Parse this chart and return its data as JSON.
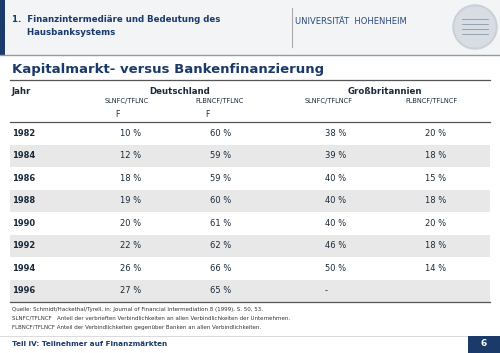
{
  "title": "Kapitalmarkt- versus Bankenfinanzierung",
  "header_line1": "1.  Finanzintermediäre und Bedeutung des",
  "header_line2": "     Hausbanksystems",
  "uni_text": "UNIVERSITÄT  HOHENHEIM",
  "sub_headers": [
    "SLNFC/TFLNC",
    "FLBNCF/TFLNC",
    "SLNFC/TFLNCF",
    "FLBNCF/TFLNCF"
  ],
  "years": [
    "1982",
    "1984",
    "1986",
    "1988",
    "1990",
    "1992",
    "1994",
    "1996"
  ],
  "data": [
    [
      "10 %",
      "60 %",
      "38 %",
      "20 %"
    ],
    [
      "12 %",
      "59 %",
      "39 %",
      "18 %"
    ],
    [
      "18 %",
      "59 %",
      "40 %",
      "15 %"
    ],
    [
      "19 %",
      "60 %",
      "40 %",
      "18 %"
    ],
    [
      "20 %",
      "61 %",
      "40 %",
      "20 %"
    ],
    [
      "22 %",
      "62 %",
      "46 %",
      "18 %"
    ],
    [
      "26 %",
      "66 %",
      "50 %",
      "14 %"
    ],
    [
      "27 %",
      "65 %",
      "-",
      ""
    ]
  ],
  "footer_lines": [
    "Quelle: Schmidt/Hackethal/Tyrell, in: Journal of Financial Intermediation 8 (1999), S. 50, 53.",
    "SLNFC/TFLNCF   Anteil der verbrieften Verbindlichkeiten an allen Verbindlichkeiten der Unternehmen.",
    "FLBNCF/TFLNCF Anteil der Verbindlichkeiten gegenüber Banken an allen Verbindlichkeiten."
  ],
  "bottom_left": "Teil IV: Teilnehmer auf Finanzmärkten",
  "bottom_right": "6",
  "stripe_color": "#e8e8e8",
  "white_color": "#ffffff",
  "header_bar_color": "#1a3a6a",
  "title_color": "#1a3a6a",
  "table_text_color": "#1a2a3a",
  "header_blue": "#1a3a6a",
  "line_color": "#555555",
  "footer_color": "#333333",
  "logo_color": "#c8d0d8"
}
